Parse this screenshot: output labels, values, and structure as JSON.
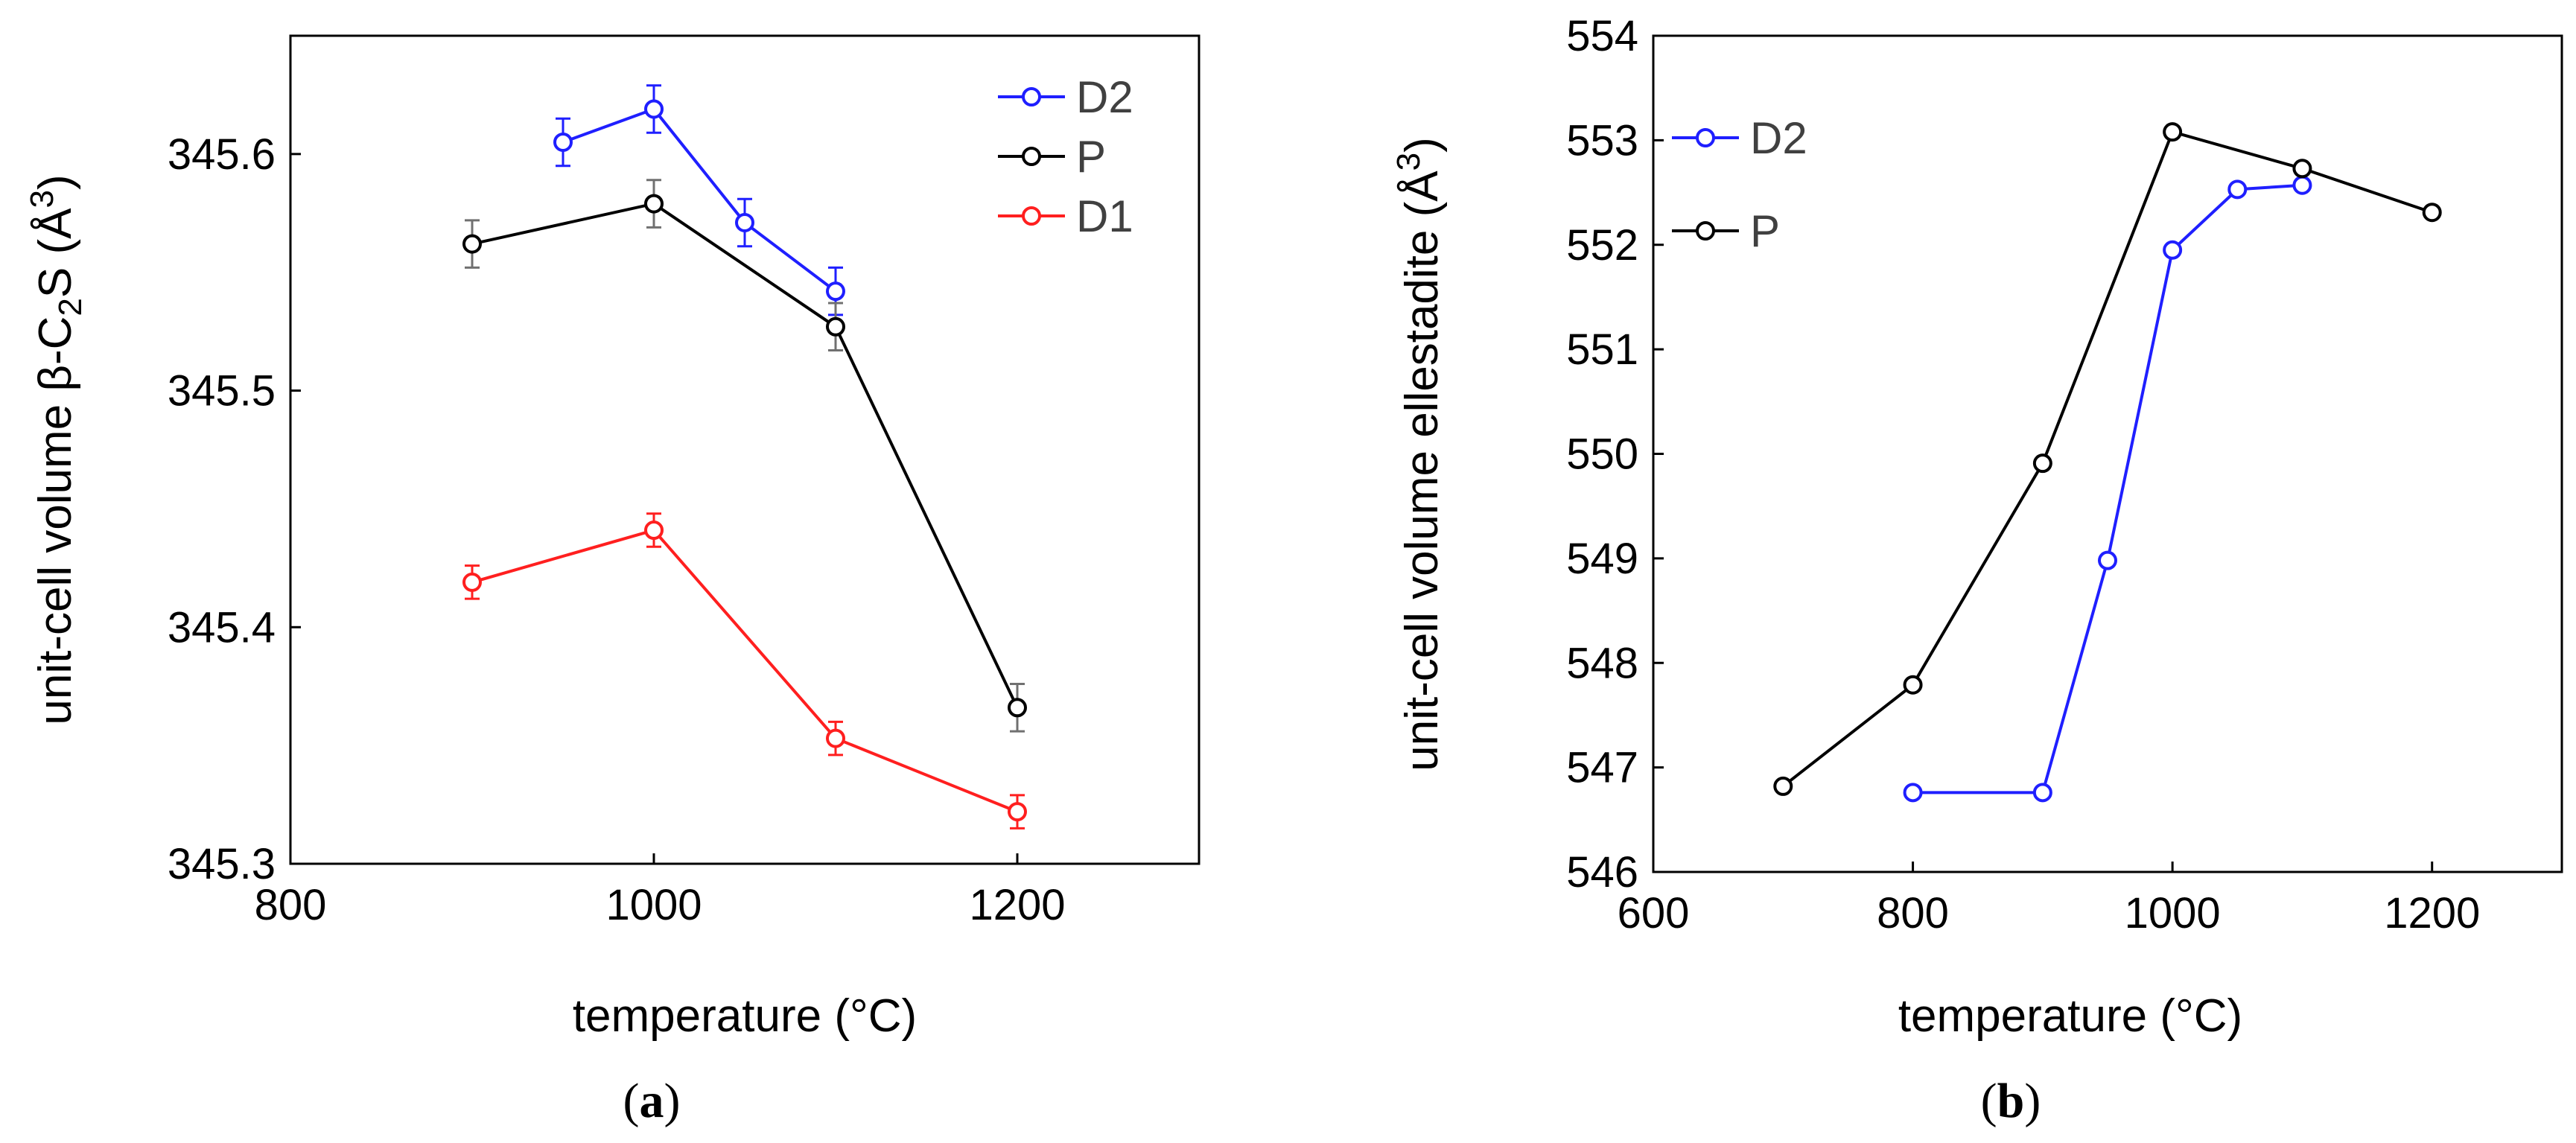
{
  "chart_data": [
    {
      "type": "line",
      "panel": "a",
      "caption_letter": "a",
      "xlabel": "temperature (°C)",
      "ylabel_main": "unit-cell volume β-C",
      "ylabel_sub": "2",
      "ylabel_mid": "S (Å",
      "ylabel_sup": "3",
      "ylabel_end": ")",
      "xlim": [
        800,
        1300
      ],
      "ylim": [
        345.3,
        345.65
      ],
      "xticks": [
        800,
        1000,
        1200
      ],
      "xtick_labels": [
        "800",
        "1000",
        "1200"
      ],
      "yticks": [
        345.3,
        345.4,
        345.5,
        345.6
      ],
      "ytick_labels": [
        "345.3",
        "345.4",
        "345.5",
        "345.6"
      ],
      "legend_position": "top-right",
      "series": [
        {
          "name": "D2",
          "color": "#1f1fff",
          "x": [
            950,
            1000,
            1050,
            1100
          ],
          "y": [
            345.605,
            345.619,
            345.571,
            345.542
          ],
          "err": [
            0.01,
            0.01,
            0.01,
            0.01
          ]
        },
        {
          "name": "P",
          "color": "#000000",
          "err_color": "#707070",
          "x": [
            900,
            1000,
            1100,
            1200
          ],
          "y": [
            345.562,
            345.579,
            345.527,
            345.366
          ],
          "err": [
            0.01,
            0.01,
            0.01,
            0.01
          ]
        },
        {
          "name": "D1",
          "color": "#ff1f1f",
          "x": [
            900,
            1000,
            1100,
            1200
          ],
          "y": [
            345.419,
            345.441,
            345.353,
            345.322
          ],
          "err": [
            0.007,
            0.007,
            0.007,
            0.007
          ]
        }
      ]
    },
    {
      "type": "line",
      "panel": "b",
      "caption_letter": "b",
      "xlabel": "temperature (°C)",
      "ylabel_main": "unit-cell volume ellestadite (Å",
      "ylabel_sup": "3",
      "ylabel_end": ")",
      "xlim": [
        600,
        1300
      ],
      "ylim": [
        546,
        554
      ],
      "xticks": [
        600,
        800,
        1000,
        1200
      ],
      "xtick_labels": [
        "600",
        "800",
        "1000",
        "1200"
      ],
      "yticks": [
        546,
        547,
        548,
        549,
        550,
        551,
        552,
        553,
        554
      ],
      "ytick_labels": [
        "546",
        "547",
        "548",
        "549",
        "550",
        "551",
        "552",
        "553",
        "554"
      ],
      "legend_position": "top-left",
      "series": [
        {
          "name": "D2",
          "color": "#1f1fff",
          "x": [
            800,
            900,
            950,
            1000,
            1050,
            1100
          ],
          "y": [
            546.76,
            546.76,
            548.98,
            551.95,
            552.53,
            552.57
          ]
        },
        {
          "name": "P",
          "color": "#000000",
          "x": [
            700,
            800,
            900,
            1000,
            1100,
            1200
          ],
          "y": [
            546.82,
            547.79,
            549.91,
            553.08,
            552.73,
            552.31
          ]
        }
      ]
    }
  ]
}
